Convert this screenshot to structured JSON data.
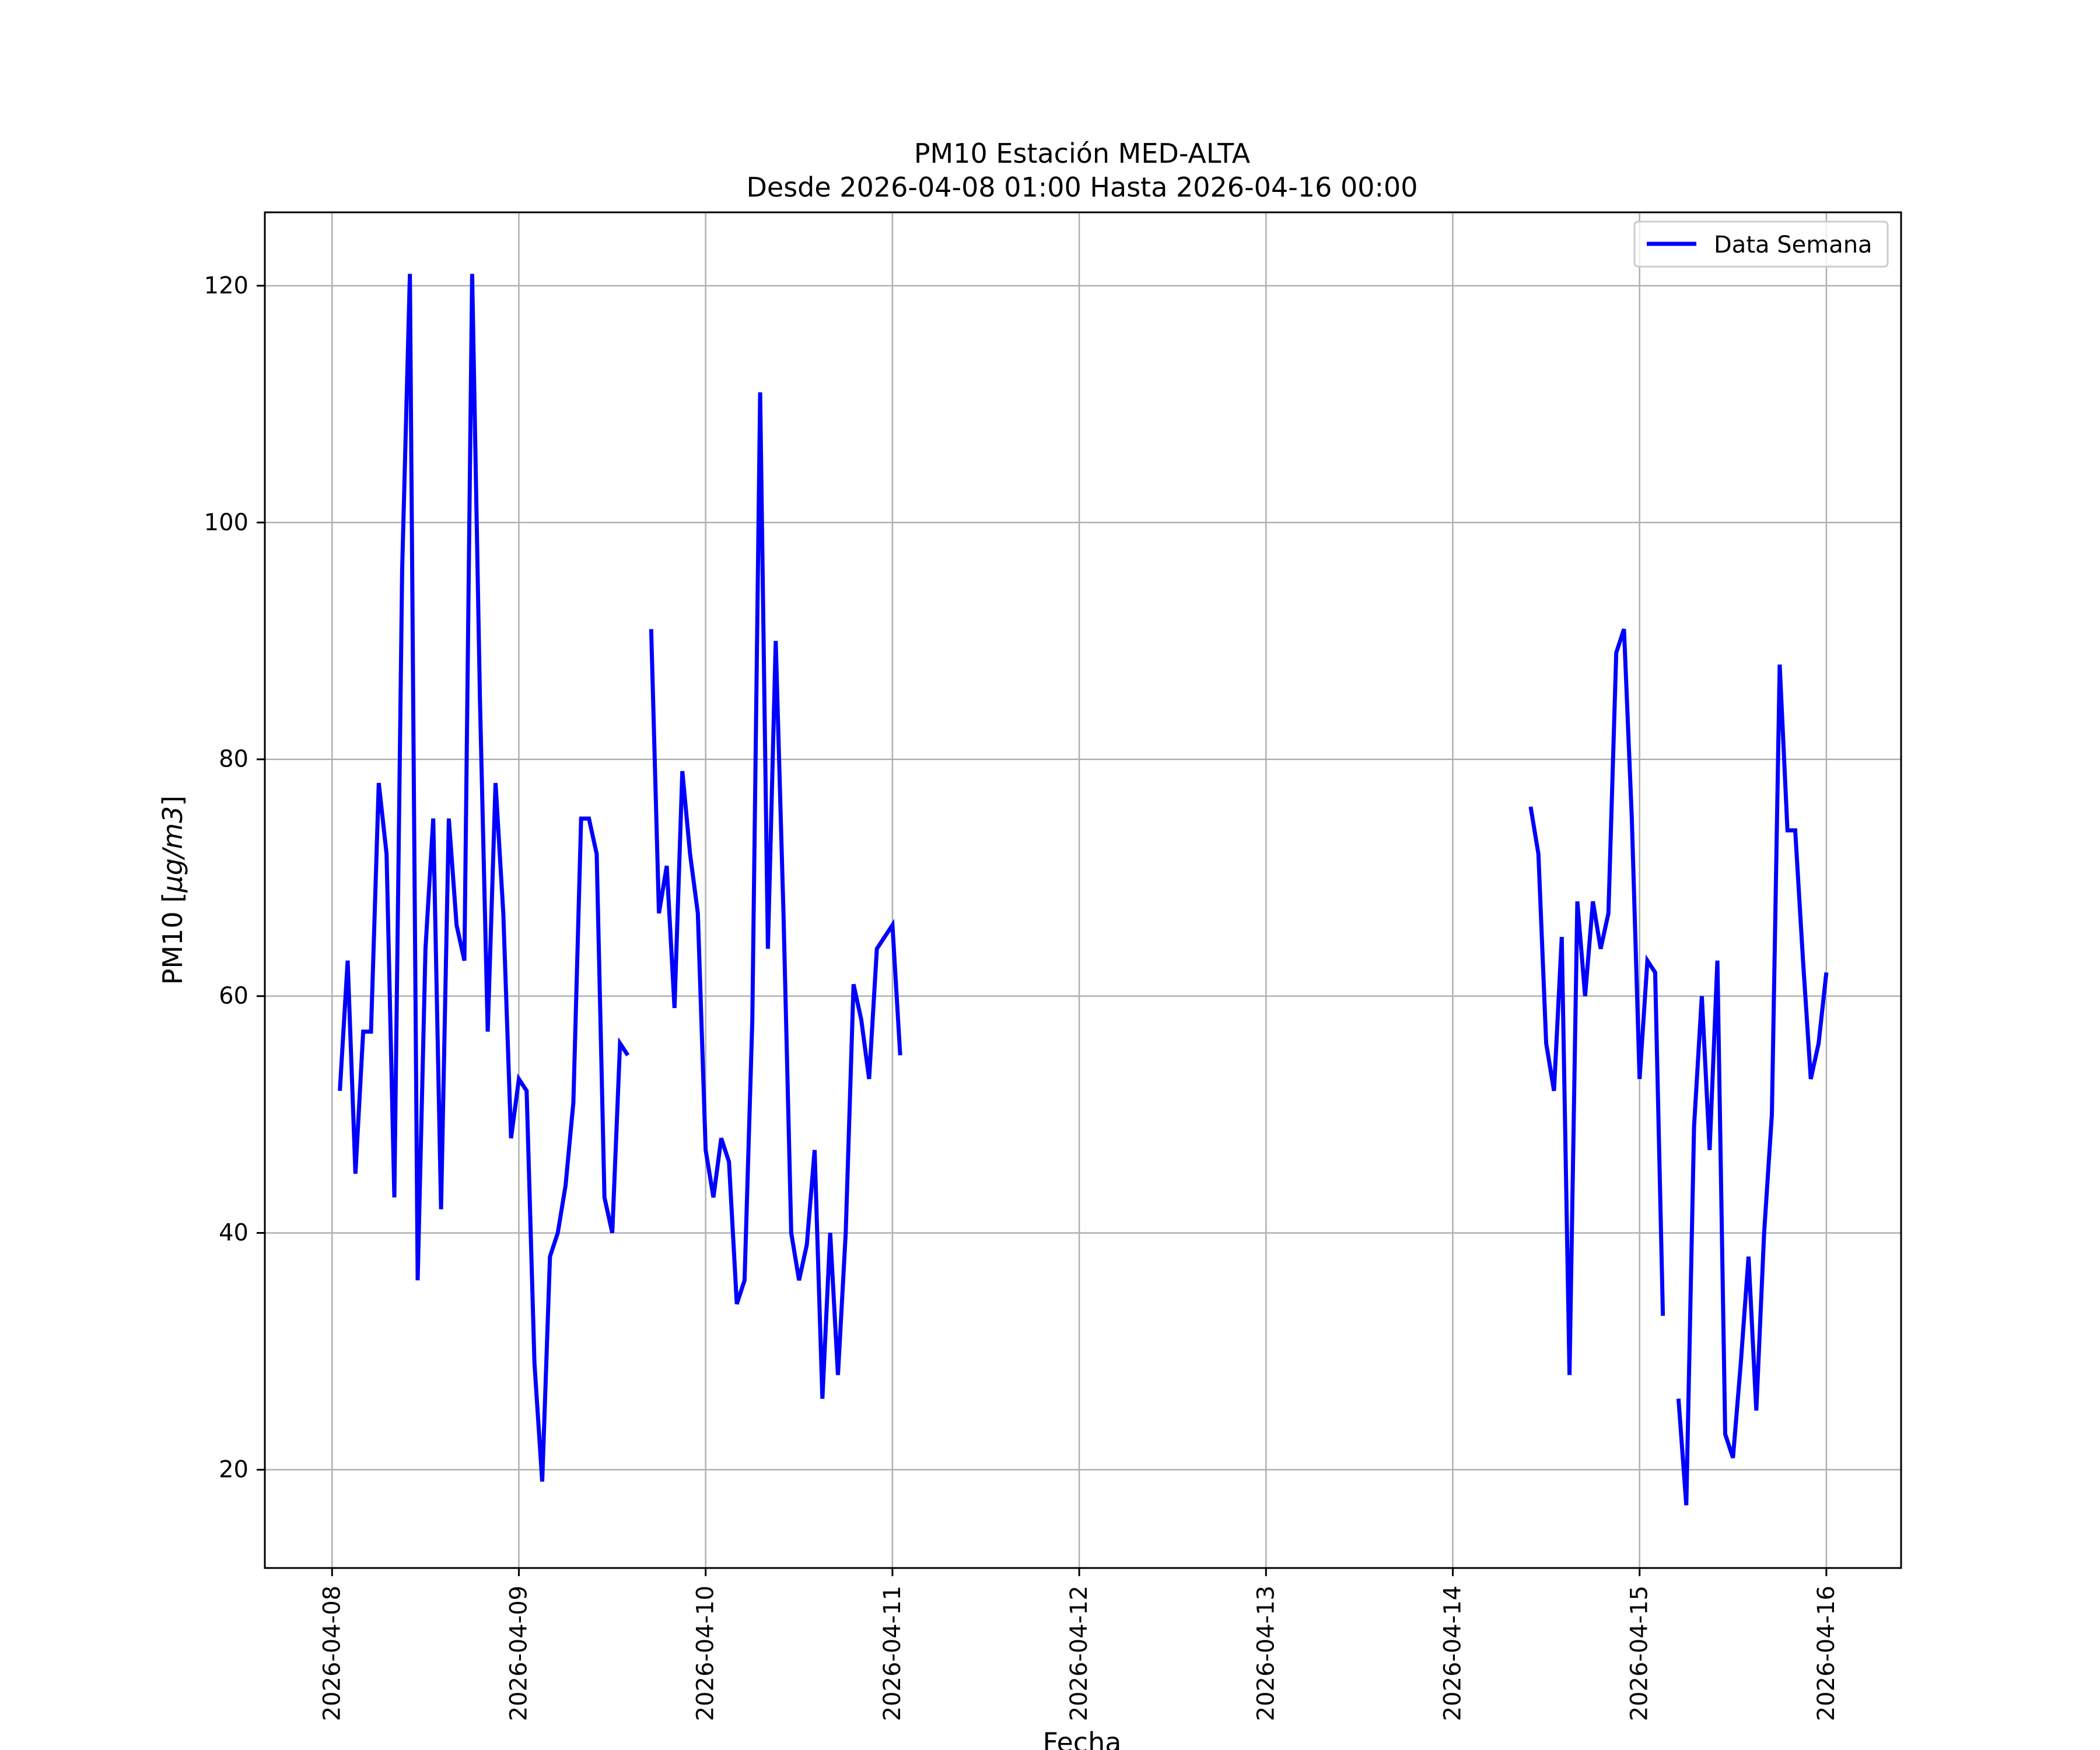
{
  "chart_data": {
    "type": "line",
    "title": "PM10 Estación MED-ALTA",
    "subtitle": "Desde 2026-04-08 01:00 Hasta 2026-04-16 00:00",
    "xlabel": "Fecha",
    "ylabel_prefix": "PM10 [",
    "ylabel_unit": "μg/m3",
    "ylabel_suffix": "]",
    "x_unit": "days since 2026-04-08 00:00",
    "xlim": [
      -0.36,
      8.4
    ],
    "ylim": [
      11.7,
      126.2
    ],
    "xticks": [
      0,
      1,
      2,
      3,
      4,
      5,
      6,
      7,
      8
    ],
    "xtick_labels": [
      "2026-04-08",
      "2026-04-09",
      "2026-04-10",
      "2026-04-11",
      "2026-04-12",
      "2026-04-13",
      "2026-04-14",
      "2026-04-15",
      "2026-04-16"
    ],
    "yticks": [
      20,
      40,
      60,
      80,
      100,
      120
    ],
    "ytick_labels": [
      "20",
      "40",
      "60",
      "80",
      "100",
      "120"
    ],
    "grid": true,
    "legend": {
      "position": "top-right",
      "entries": [
        "Data Semana"
      ]
    },
    "series": [
      {
        "name": "Data Semana",
        "color": "#0000ff",
        "segments": [
          {
            "start": 0.04167,
            "values": [
              52,
              63,
              45,
              57,
              57,
              78,
              72,
              43,
              96,
              121,
              36,
              64,
              75,
              42,
              75,
              66,
              63,
              121,
              85,
              57,
              78,
              67,
              48,
              53,
              52,
              29,
              19,
              38,
              40,
              44,
              51,
              75,
              75,
              72,
              43,
              40,
              56,
              55
            ]
          },
          {
            "start": 1.70833,
            "values": [
              91,
              67,
              71,
              59,
              79,
              72,
              67,
              47,
              43,
              48,
              46,
              34,
              36,
              58,
              111,
              64,
              90,
              67,
              40,
              36,
              39,
              47,
              26,
              40,
              28,
              40,
              61,
              58,
              53,
              64,
              65,
              66,
              55
            ]
          },
          {
            "start": 6.41667,
            "values": [
              76,
              72,
              56,
              52,
              65,
              28,
              68,
              60,
              68,
              64,
              67,
              89,
              91,
              75,
              53,
              63,
              62,
              33
            ]
          },
          {
            "start": 7.20833,
            "values": [
              26,
              17,
              49,
              60,
              47,
              63,
              23,
              21,
              29,
              38,
              25,
              40,
              50,
              88,
              74,
              74,
              63,
              53,
              56,
              62
            ]
          }
        ]
      }
    ]
  }
}
